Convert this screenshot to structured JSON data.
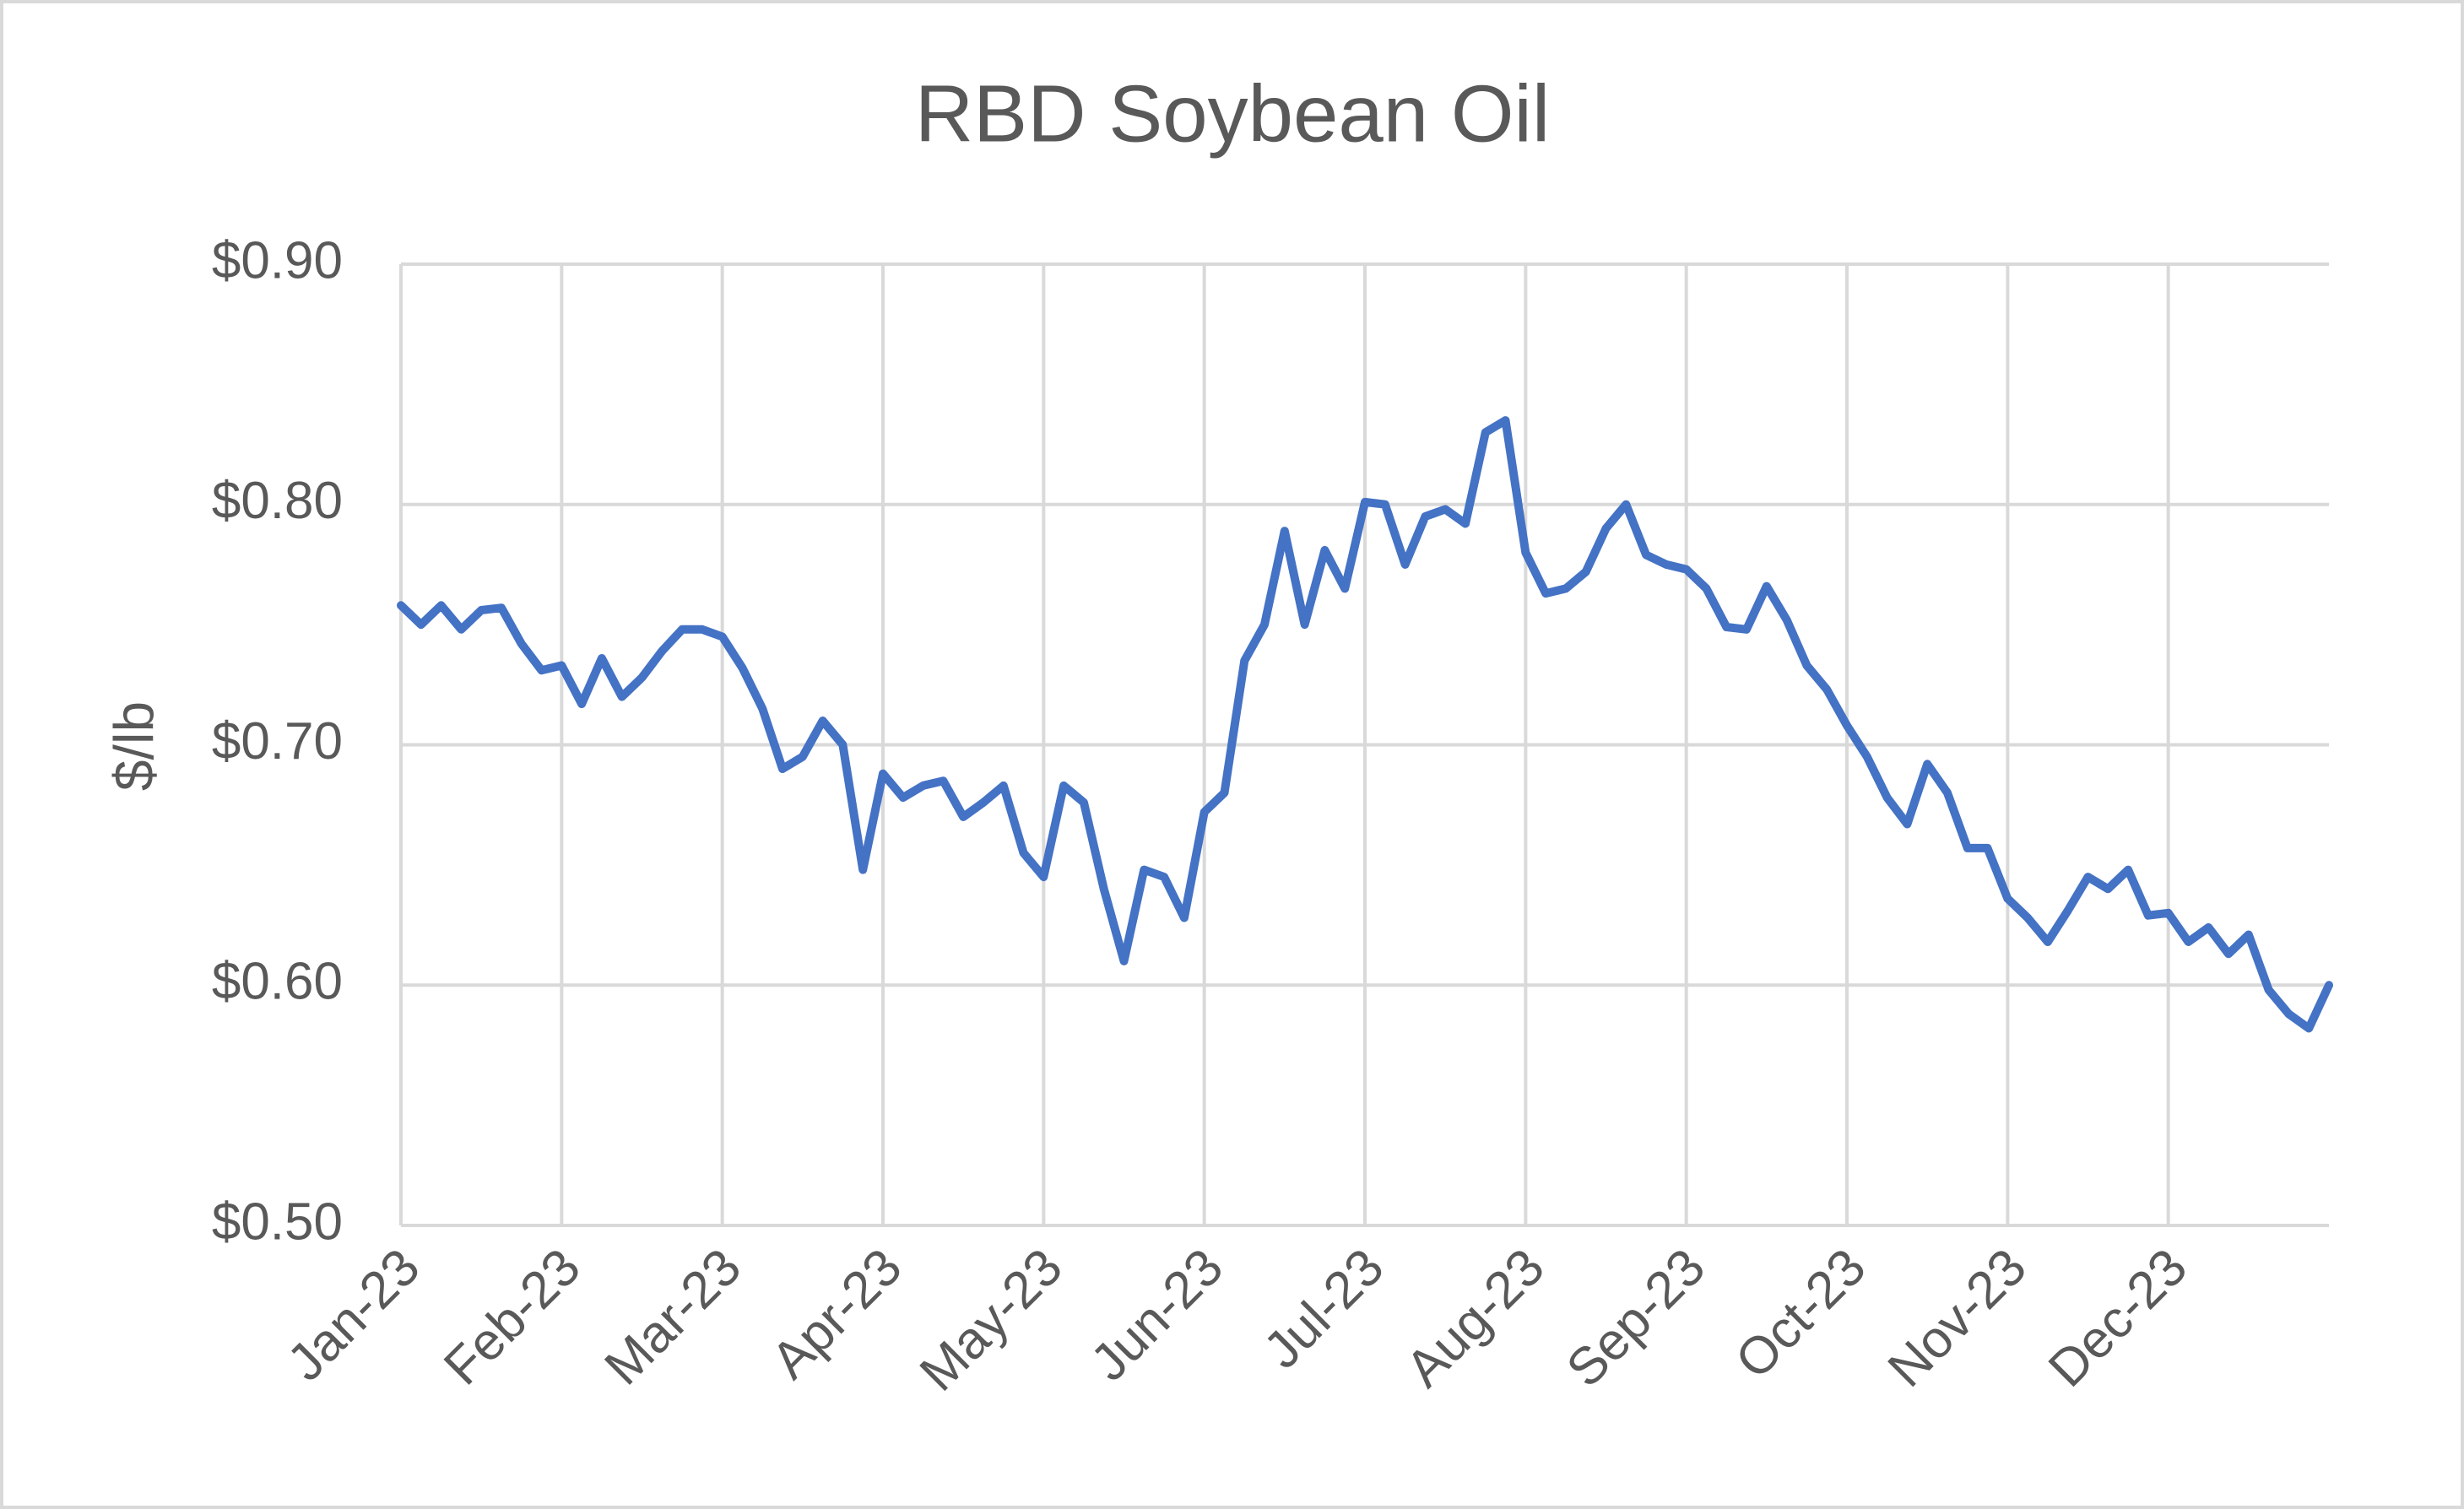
{
  "chart_data": {
    "type": "line",
    "title": "RBD Soybean Oil",
    "y_label": "$/lb",
    "categories": [
      "Jan-23",
      null,
      null,
      null,
      null,
      null,
      null,
      null,
      "Feb-23",
      null,
      null,
      null,
      null,
      null,
      null,
      null,
      "Mar-23",
      null,
      null,
      null,
      null,
      null,
      null,
      null,
      "Apr-23",
      null,
      null,
      null,
      null,
      null,
      null,
      null,
      "May-23",
      null,
      null,
      null,
      null,
      null,
      null,
      null,
      "Jun-23",
      null,
      null,
      null,
      null,
      null,
      null,
      null,
      "Jul-23",
      null,
      null,
      null,
      null,
      null,
      null,
      null,
      "Aug-23",
      null,
      null,
      null,
      null,
      null,
      null,
      null,
      "Sep-23",
      null,
      null,
      null,
      null,
      null,
      null,
      null,
      "Oct-23",
      null,
      null,
      null,
      null,
      null,
      null,
      null,
      "Nov-23",
      null,
      null,
      null,
      null,
      null,
      null,
      null,
      "Dec-23",
      null,
      null,
      null,
      null,
      null,
      null,
      null,
      null
    ],
    "values": [
      0.758,
      0.75,
      0.758,
      0.748,
      0.756,
      0.757,
      0.742,
      0.731,
      0.733,
      0.717,
      0.736,
      0.72,
      0.728,
      0.739,
      0.748,
      0.748,
      0.745,
      0.732,
      0.715,
      0.69,
      0.695,
      0.71,
      0.7,
      0.648,
      0.688,
      0.678,
      0.683,
      0.685,
      0.67,
      0.676,
      0.683,
      0.655,
      0.645,
      0.683,
      0.676,
      0.64,
      0.61,
      0.648,
      0.645,
      0.628,
      0.672,
      0.68,
      0.735,
      0.75,
      0.789,
      0.75,
      0.781,
      0.765,
      0.801,
      0.8,
      0.775,
      0.795,
      0.798,
      0.792,
      0.83,
      0.835,
      0.78,
      0.763,
      0.765,
      0.772,
      0.79,
      0.8,
      0.779,
      0.775,
      0.773,
      0.765,
      0.749,
      0.748,
      0.766,
      0.752,
      0.733,
      0.723,
      0.708,
      0.695,
      0.678,
      0.667,
      0.692,
      0.68,
      0.657,
      0.657,
      0.636,
      0.628,
      0.618,
      0.631,
      0.645,
      0.64,
      0.648,
      0.629,
      0.63,
      0.618,
      0.624,
      0.613,
      0.621,
      0.598,
      0.588,
      0.582,
      0.6
    ],
    "color": "#4472c4",
    "ylim": [
      0.5,
      0.9
    ],
    "yticks": [
      {
        "value": 0.5,
        "label": "$0.50"
      },
      {
        "value": 0.6,
        "label": "$0.60"
      },
      {
        "value": 0.7,
        "label": "$0.70"
      },
      {
        "value": 0.8,
        "label": "$0.80"
      },
      {
        "value": 0.9,
        "label": "$0.90"
      }
    ],
    "grid": true
  }
}
